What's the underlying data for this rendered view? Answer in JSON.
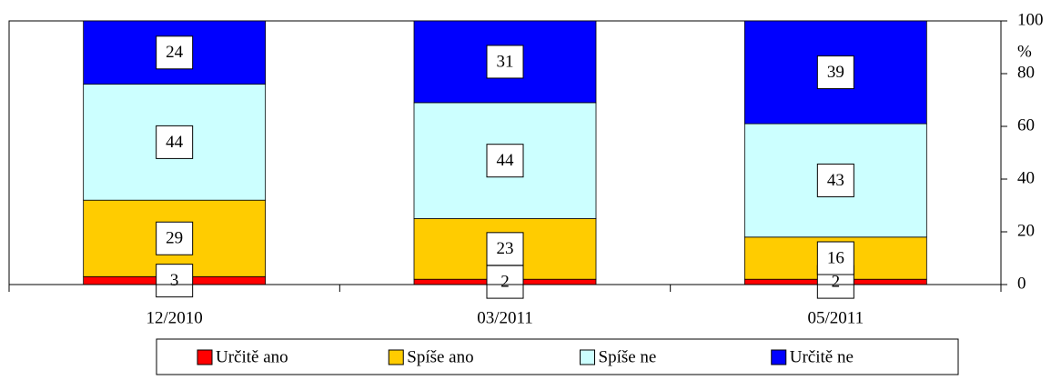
{
  "chart_data": {
    "type": "stacked_bar",
    "categories": [
      "12/2010",
      "03/2011",
      "05/2011"
    ],
    "series": [
      {
        "name": "Určitě ano",
        "color": "#ff0000",
        "values": [
          3,
          2,
          2
        ]
      },
      {
        "name": "Spíše ano",
        "color": "#ffcc00",
        "values": [
          29,
          23,
          16
        ]
      },
      {
        "name": "Spíše ne",
        "color": "#ccffff",
        "values": [
          44,
          44,
          43
        ]
      },
      {
        "name": "Určitě ne",
        "color": "#0000ff",
        "values": [
          24,
          31,
          39
        ]
      }
    ],
    "y_label": "%",
    "ylim": [
      0,
      100
    ],
    "yticks": [
      0,
      20,
      40,
      60,
      80,
      100
    ],
    "y_axis_side": "right",
    "legend": "bottom"
  }
}
